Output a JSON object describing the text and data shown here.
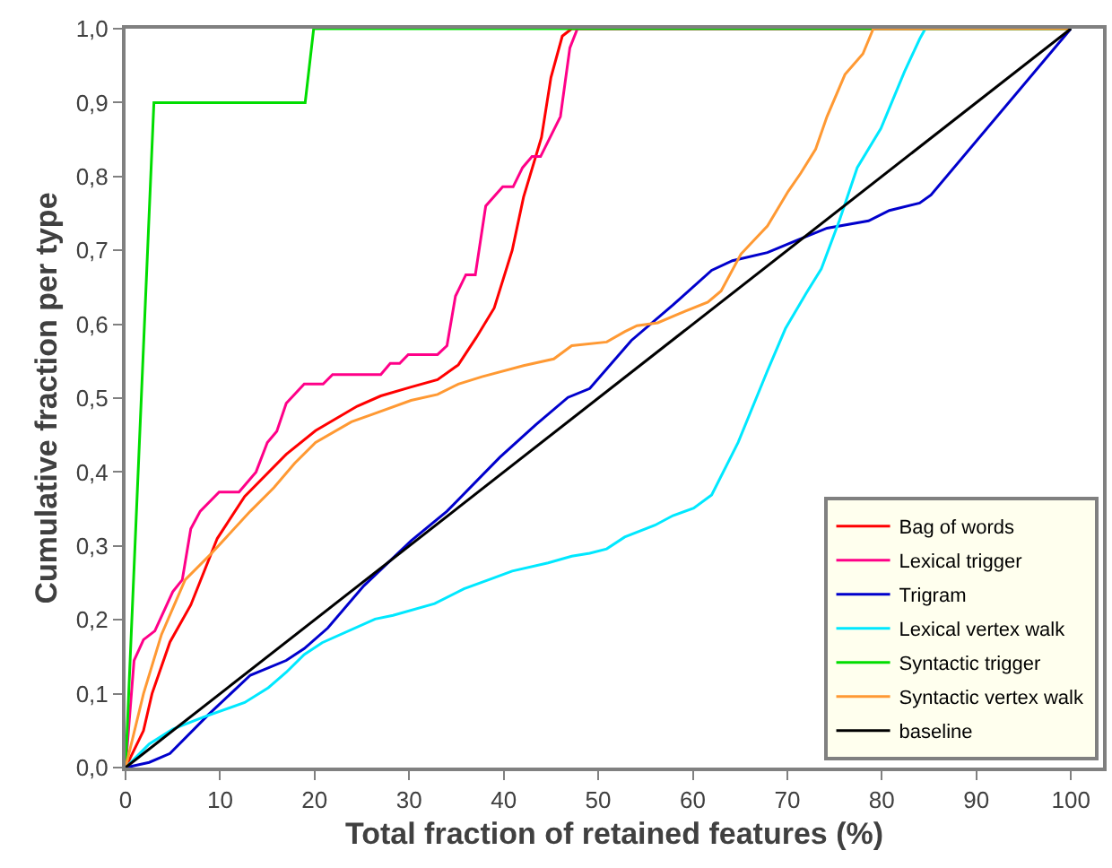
{
  "chart_data": {
    "type": "line",
    "xlabel": "Total fraction of retained features (%)",
    "ylabel": "Cumulative fraction per type",
    "xlim": [
      0,
      103.4
    ],
    "ylim": [
      0,
      1
    ],
    "xticks": [
      0,
      10,
      20,
      30,
      40,
      50,
      60,
      70,
      80,
      90,
      100
    ],
    "yticks": [
      {
        "value": 0,
        "label": "0,0"
      },
      {
        "value": 0.1,
        "label": "0,1"
      },
      {
        "value": 0.2,
        "label": "0,2"
      },
      {
        "value": 0.3,
        "label": "0,3"
      },
      {
        "value": 0.4,
        "label": "0,4"
      },
      {
        "value": 0.5,
        "label": "0,5"
      },
      {
        "value": 0.6,
        "label": "0,6"
      },
      {
        "value": 0.7,
        "label": "0,7"
      },
      {
        "value": 0.8,
        "label": "0,8"
      },
      {
        "value": 0.9,
        "label": "0,9"
      },
      {
        "value": 1,
        "label": "1,0"
      }
    ],
    "legend": "bottom right",
    "marker": "none",
    "line_style": "solid",
    "series": [
      {
        "name": "Bag of words",
        "color": "#ff0000",
        "x": [
          0,
          1.9,
          2.8,
          4.7,
          6.9,
          9.7,
          12.6,
          17.0,
          20.1,
          24.5,
          27.0,
          30.2,
          33.0,
          35.2,
          37.1,
          39.0,
          40.9,
          42.1,
          44.0,
          45.0,
          46.2,
          47.2,
          100
        ],
        "values": [
          0,
          0.05,
          0.1,
          0.17,
          0.22,
          0.31,
          0.367,
          0.424,
          0.456,
          0.489,
          0.503,
          0.515,
          0.525,
          0.545,
          0.582,
          0.622,
          0.7,
          0.772,
          0.853,
          0.934,
          0.99,
          1,
          1
        ]
      },
      {
        "name": "Lexical trigger",
        "color": "#ff0088",
        "x": [
          0,
          0.9,
          1.9,
          3.1,
          5.0,
          6.0,
          6.9,
          7.9,
          9.9,
          12.0,
          13.8,
          15.0,
          16.0,
          17.0,
          18.9,
          20.9,
          21.9,
          27.0,
          28.0,
          29.0,
          29.9,
          33.0,
          34.0,
          34.9,
          36.0,
          37.0,
          38.1,
          39.9,
          41.0,
          42.0,
          43.0,
          43.9,
          46.0,
          47.0,
          47.8,
          100
        ],
        "values": [
          0,
          0.145,
          0.173,
          0.185,
          0.238,
          0.254,
          0.323,
          0.347,
          0.373,
          0.373,
          0.4,
          0.44,
          0.455,
          0.493,
          0.519,
          0.519,
          0.532,
          0.532,
          0.547,
          0.547,
          0.559,
          0.559,
          0.571,
          0.638,
          0.667,
          0.667,
          0.76,
          0.786,
          0.786,
          0.812,
          0.827,
          0.827,
          0.881,
          0.974,
          1,
          1
        ]
      },
      {
        "name": "Trigram",
        "color": "#0000cc",
        "x": [
          0,
          2.5,
          4.7,
          8.8,
          13.2,
          17.0,
          18.9,
          21.4,
          25.2,
          30.2,
          34.0,
          39.6,
          43.4,
          46.8,
          49.1,
          53.5,
          57.9,
          62.0,
          64.2,
          67.9,
          71.1,
          74.2,
          78.6,
          80.8,
          84.0,
          85.2,
          100
        ],
        "values": [
          0,
          0.007,
          0.019,
          0.072,
          0.125,
          0.145,
          0.161,
          0.189,
          0.246,
          0.307,
          0.347,
          0.42,
          0.464,
          0.501,
          0.513,
          0.578,
          0.626,
          0.673,
          0.686,
          0.697,
          0.714,
          0.73,
          0.74,
          0.754,
          0.764,
          0.775,
          1
        ]
      },
      {
        "name": "Lexical vertex walk",
        "color": "#00e8ff",
        "x": [
          0,
          2.5,
          5.0,
          8.2,
          12.6,
          15.1,
          17.0,
          18.9,
          20.8,
          26.4,
          28.3,
          32.7,
          35.8,
          38.4,
          40.9,
          44.7,
          47.2,
          49.1,
          50.9,
          52.8,
          56.0,
          57.9,
          60.1,
          62.0,
          64.8,
          67.9,
          69.8,
          72.0,
          73.6,
          75.5,
          77.4,
          79.9,
          82.4,
          84.0,
          84.6,
          100
        ],
        "values": [
          0,
          0.032,
          0.052,
          0.068,
          0.088,
          0.108,
          0.129,
          0.153,
          0.169,
          0.201,
          0.206,
          0.222,
          0.242,
          0.254,
          0.266,
          0.277,
          0.286,
          0.29,
          0.296,
          0.312,
          0.328,
          0.341,
          0.351,
          0.369,
          0.44,
          0.537,
          0.594,
          0.642,
          0.675,
          0.74,
          0.812,
          0.865,
          0.942,
          0.986,
          1,
          1
        ]
      },
      {
        "name": "Syntactic trigger",
        "color": "#00dd00",
        "x": [
          0,
          3.0,
          19.0,
          19.9,
          100
        ],
        "values": [
          0,
          0.9,
          0.9,
          1,
          1
        ]
      },
      {
        "name": "Syntactic vertex walk",
        "color": "#ff9933",
        "x": [
          0,
          1.9,
          3.8,
          6.3,
          9.1,
          13.2,
          15.7,
          17.9,
          20.1,
          23.9,
          26.1,
          30.2,
          33.0,
          35.2,
          37.7,
          42.1,
          45.3,
          47.2,
          50.9,
          52.8,
          54.1,
          56.3,
          58.5,
          61.6,
          63.0,
          65.1,
          67.9,
          70.1,
          71.4,
          73.0,
          74.2,
          76.1,
          78.0,
          79.1,
          100
        ],
        "values": [
          0,
          0.1,
          0.18,
          0.254,
          0.29,
          0.347,
          0.379,
          0.412,
          0.44,
          0.468,
          0.478,
          0.497,
          0.505,
          0.519,
          0.529,
          0.544,
          0.553,
          0.571,
          0.576,
          0.59,
          0.598,
          0.602,
          0.614,
          0.63,
          0.645,
          0.695,
          0.733,
          0.78,
          0.804,
          0.837,
          0.881,
          0.938,
          0.966,
          1,
          1
        ]
      },
      {
        "name": "baseline",
        "color": "#000000",
        "x": [
          0,
          100
        ],
        "values": [
          0,
          1
        ]
      }
    ]
  }
}
